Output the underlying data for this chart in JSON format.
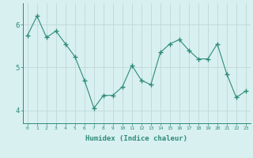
{
  "xlabel": "Humidex (Indice chaleur)",
  "x_values": [
    0,
    1,
    2,
    3,
    4,
    5,
    6,
    7,
    8,
    9,
    10,
    11,
    12,
    13,
    14,
    15,
    16,
    17,
    18,
    19,
    20,
    21,
    22,
    23
  ],
  "y_values": [
    5.75,
    6.2,
    5.7,
    5.85,
    5.55,
    5.25,
    4.7,
    4.05,
    4.35,
    4.35,
    4.55,
    5.05,
    4.7,
    4.6,
    5.35,
    5.55,
    5.65,
    5.4,
    5.2,
    5.2,
    5.55,
    4.85,
    4.3,
    4.45
  ],
  "line_color": "#2e8b77",
  "marker": "+",
  "marker_size": 4,
  "ylim": [
    3.7,
    6.5
  ],
  "yticks": [
    4,
    5,
    6
  ],
  "background_color": "#d8f0f0",
  "grid_color": "#c0d8d8",
  "tick_color": "#2e8b77",
  "label_color": "#2e8b77",
  "font": "monospace"
}
